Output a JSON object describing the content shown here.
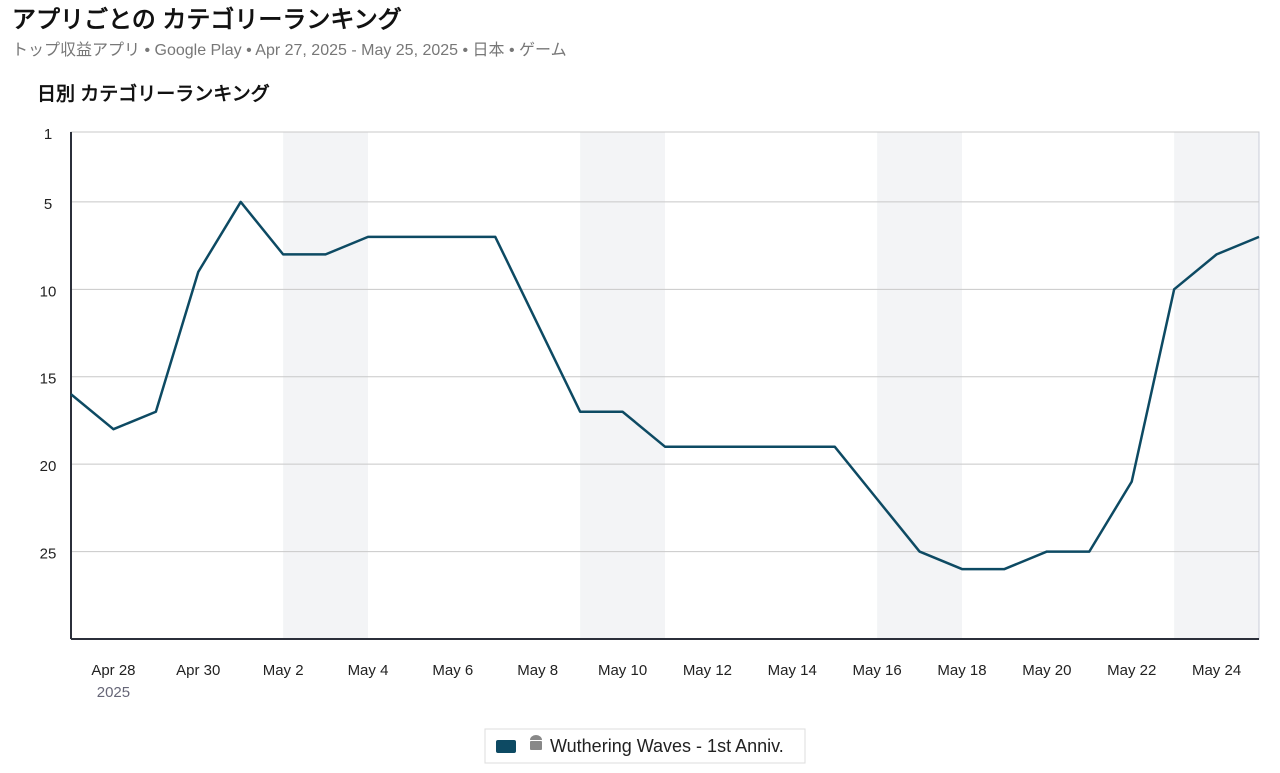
{
  "chart_data": {
    "type": "line",
    "title": "アプリごとの カテゴリーランキング",
    "subtitle": "トップ収益アプリ • Google Play • Apr 27, 2025 - May 25, 2025 • 日本 • ゲーム",
    "chart_title": "日別 カテゴリーランキング",
    "categories": [
      null,
      "Apr 28",
      null,
      "Apr 30",
      null,
      "May 2",
      null,
      "May 4",
      null,
      "May 6",
      null,
      "May 8",
      null,
      "May 10",
      null,
      "May 12",
      null,
      "May 14",
      null,
      "May 16",
      null,
      "May 18",
      null,
      "May 20",
      null,
      "May 22",
      null,
      "May 24",
      null
    ],
    "x_sublabel": "2025",
    "series": [
      {
        "name": "Wuthering Waves - 1st Anniv.",
        "color": "#0d4a63",
        "values": [
          16,
          18,
          17,
          9,
          5,
          8,
          8,
          7,
          7,
          7,
          7,
          12,
          17,
          17,
          19,
          19,
          19,
          19,
          19,
          22,
          25,
          26,
          26,
          25,
          25,
          21,
          10,
          8,
          7
        ]
      }
    ],
    "ylim": [
      1,
      30
    ],
    "yticks": [
      1,
      5,
      10,
      15,
      20,
      25
    ],
    "y_reversed": true,
    "grid": true
  }
}
